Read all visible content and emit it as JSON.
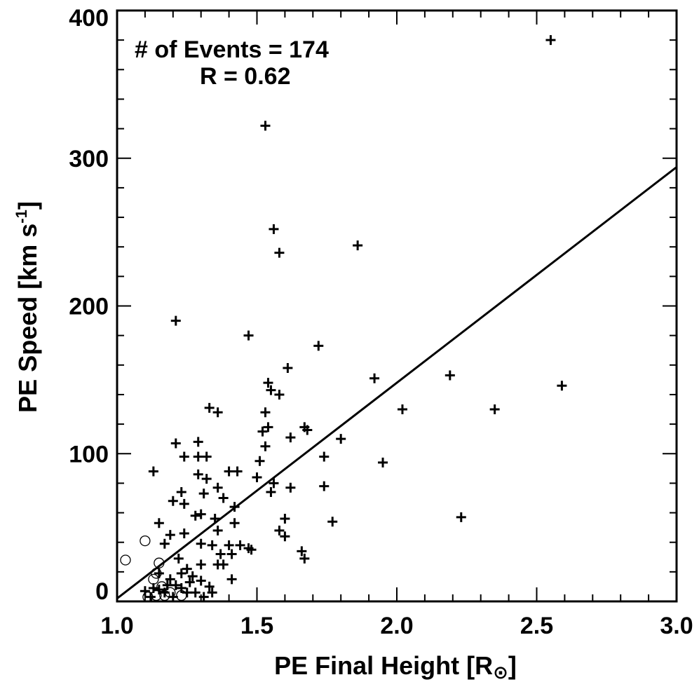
{
  "chart_data": {
    "type": "scatter",
    "annotations": [
      "# of Events = 174",
      "R = 0.62"
    ],
    "x_label": {
      "text": "PE Final Height [R",
      "sub": "⊙",
      "end": "]"
    },
    "y_label": {
      "text": "PE Speed [km s",
      "sup": "-1",
      "end": "]"
    },
    "xlim": [
      1.0,
      3.0
    ],
    "ylim": [
      0,
      400
    ],
    "xticks": [
      {
        "value": 1.0,
        "label": "1.0"
      },
      {
        "value": 1.5,
        "label": "1.5"
      },
      {
        "value": 2.0,
        "label": "2.0"
      },
      {
        "value": 2.5,
        "label": "2.5"
      },
      {
        "value": 3.0,
        "label": "3.0"
      }
    ],
    "yticks": [
      0,
      100,
      200,
      300,
      400
    ],
    "xminorticks": [
      1.1,
      1.2,
      1.3,
      1.4,
      1.6,
      1.7,
      1.8,
      1.9,
      2.1,
      2.2,
      2.3,
      2.4,
      2.6,
      2.7,
      2.8,
      2.9
    ],
    "yminorticks": [
      20,
      40,
      60,
      80,
      120,
      140,
      160,
      180,
      220,
      240,
      260,
      280,
      320,
      340,
      360,
      380
    ],
    "color": "#000000",
    "fit": {
      "x": [
        1.0,
        3.0
      ],
      "y": [
        2,
        294
      ]
    },
    "series": [
      {
        "marker": "plus",
        "x": [
          2.55,
          1.53,
          1.56,
          1.58,
          1.86,
          1.21,
          1.47,
          1.72,
          1.92,
          2.19,
          2.59,
          1.61,
          1.54,
          1.55,
          1.58,
          2.02,
          2.35,
          1.33,
          1.36,
          1.53,
          1.54,
          1.67,
          1.68,
          1.52,
          1.62,
          1.8,
          1.21,
          1.29,
          1.53,
          1.13,
          1.24,
          1.29,
          1.32,
          1.51,
          1.95,
          1.74,
          1.4,
          1.43,
          1.29,
          1.32,
          1.5,
          1.56,
          1.74,
          1.62,
          1.2,
          1.23,
          1.24,
          1.31,
          1.36,
          1.38,
          1.42,
          1.55,
          1.28,
          1.3,
          1.35,
          1.42,
          1.6,
          2.23,
          1.77,
          1.15,
          1.36,
          1.17,
          1.19,
          1.24,
          1.3,
          1.34,
          1.4,
          1.44,
          1.47,
          1.58,
          1.6,
          1.66,
          1.67,
          1.48,
          1.37,
          1.41,
          1.3,
          1.36,
          1.41,
          1.22,
          1.25,
          1.27,
          1.3,
          1.33,
          1.34,
          1.19,
          1.21,
          1.23,
          1.15,
          1.13,
          1.1,
          1.12,
          1.17,
          1.25,
          1.2,
          1.31,
          1.28,
          1.38,
          1.15,
          1.23,
          1.26,
          1.18
        ],
        "values": [
          380,
          322,
          252,
          236,
          241,
          190,
          180,
          173,
          151,
          153,
          146,
          158,
          148,
          143,
          140,
          130,
          130,
          131,
          128,
          128,
          118,
          118,
          116,
          115,
          111,
          110,
          107,
          108,
          105,
          88,
          98,
          98,
          98,
          95,
          94,
          98,
          88,
          88,
          86,
          83,
          84,
          80,
          78,
          77,
          68,
          74,
          66,
          73,
          77,
          70,
          64,
          74,
          58,
          59,
          56,
          53,
          56,
          57,
          54,
          53,
          48,
          39,
          45,
          46,
          39,
          38,
          38,
          38,
          36,
          48,
          44,
          34,
          29,
          35,
          32,
          32,
          25,
          25,
          15,
          29,
          22,
          17,
          14,
          10,
          6,
          15,
          11,
          19,
          19,
          9,
          7,
          3,
          6,
          6,
          3,
          3,
          6,
          25,
          8,
          9,
          13,
          11
        ]
      },
      {
        "marker": "circle",
        "x": [
          1.03,
          1.1,
          1.15,
          1.14,
          1.13,
          1.11,
          1.14,
          1.17,
          1.23,
          1.19,
          1.16
        ],
        "values": [
          28,
          41,
          26,
          19,
          15,
          3,
          4,
          4,
          4,
          6,
          10
        ]
      }
    ]
  }
}
